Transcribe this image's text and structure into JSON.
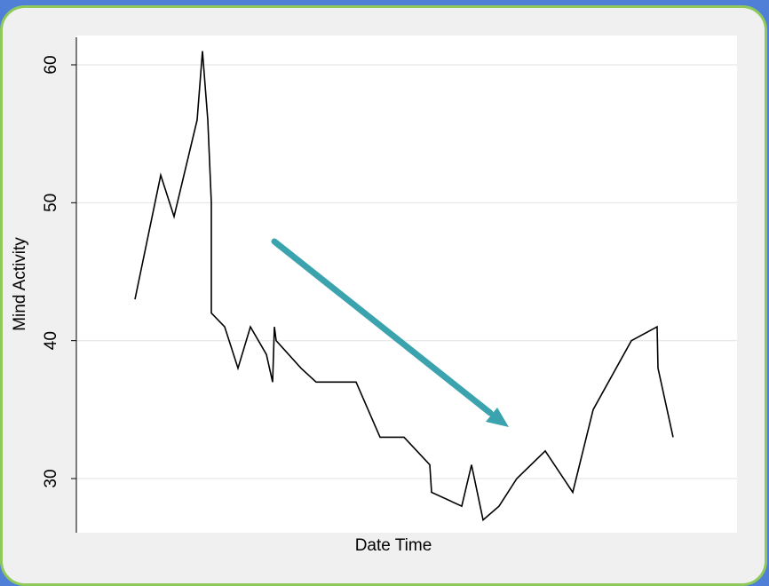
{
  "colors": {
    "background": "#4f7fd6",
    "panel": "#f0f0f0",
    "panel_border": "#8fc95a",
    "plot_bg": "#ffffff",
    "grid": "#e6e6e6",
    "line": "#000000",
    "arrow": "#3aa3ad"
  },
  "chart_data": {
    "type": "line",
    "title": "",
    "xlabel": "Date Time",
    "ylabel": "Mind Activity",
    "ylim": [
      26,
      62
    ],
    "yticks": [
      30,
      40,
      50,
      60
    ],
    "xtick_labels": [],
    "grid": "horizontal",
    "series": [
      {
        "values": [
          43,
          52,
          49,
          56,
          61,
          56,
          50,
          42,
          41,
          38,
          41,
          39,
          37,
          41,
          40,
          38,
          37,
          37,
          37,
          33,
          33,
          31,
          29,
          28,
          31,
          27,
          28,
          30,
          32,
          29,
          35,
          40,
          41,
          38,
          33
        ]
      }
    ],
    "annotation": {
      "type": "arrow",
      "direction": "down-right",
      "color": "#3aa3ad"
    }
  }
}
